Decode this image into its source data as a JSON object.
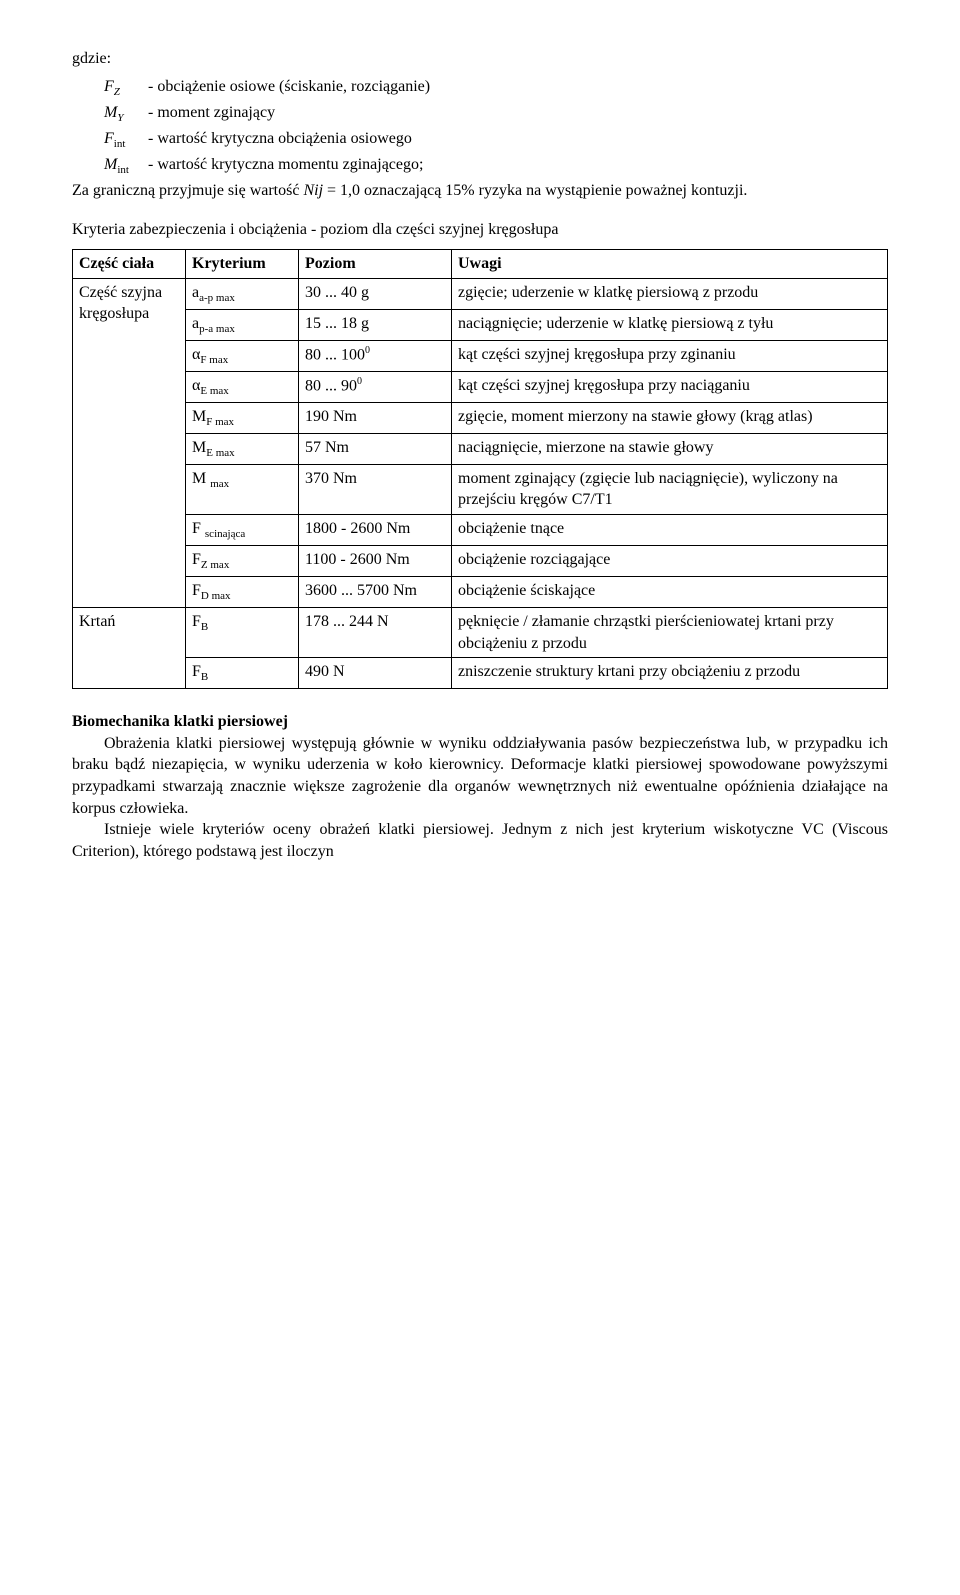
{
  "intro": {
    "gdzie": "gdzie:",
    "defs": [
      {
        "sym_html": "F<sub class='subit'>Z</sub>",
        "text": " - obciążenie osiowe (ściskanie, rozciąganie)"
      },
      {
        "sym_html": "M<sub class='subit'>Y</sub>",
        "text": " - moment zginający"
      },
      {
        "sym_html": "F<sub class='sub'>int</sub>",
        "text": " - wartość krytyczna obciążenia osiowego"
      },
      {
        "sym_html": "M<sub class='sub'>int</sub>",
        "text": " - wartość krytyczna momentu zginającego;"
      }
    ],
    "tail": "Za graniczną przyjmuje się wartość <span class='italic'>Nij</span> = 1,0 oznaczającą 15% ryzyka na wystąpienie poważnej kontuzji."
  },
  "table": {
    "caption": "Kryteria zabezpieczenia i obciążenia - poziom dla części szyjnej kręgosłupa",
    "headers": [
      "Część ciała",
      "Kryterium",
      "Poziom",
      "Uwagi"
    ],
    "groups": [
      {
        "part": "Część szyjna kręgosłupa",
        "rows": [
          {
            "k": "a<span class='sub'>a-p max</span>",
            "p": "30 ... 40 g",
            "u": "zgięcie; uderzenie w klatkę piersiową z przodu"
          },
          {
            "k": "a<span class='sub'>p-a max</span>",
            "p": "15 ... 18 g",
            "u": "naciągnięcie; uderzenie w klatkę piersiową z tyłu"
          },
          {
            "k": "α<span class='sub'>F max</span>",
            "p": "80 ... 100<span class='sup'>0</span>",
            "u": "kąt części szyjnej kręgosłupa przy zginaniu"
          },
          {
            "k": "α<span class='sub'>E max</span>",
            "p": "80 ... 90<span class='sup'>0</span>",
            "u": "kąt części szyjnej kręgosłupa przy naciąganiu"
          },
          {
            "k": "M<span class='sub'>F max</span>",
            "p": "190 Nm",
            "u": "zgięcie, moment mierzony na stawie głowy (krąg atlas)"
          },
          {
            "k": "M<span class='sub'>E max</span>",
            "p": "57 Nm",
            "u": "naciągnięcie, mierzone na stawie głowy"
          },
          {
            "k": "M <span class='sub'>max</span>",
            "p": "370 Nm",
            "u": "moment zginający (zgięcie lub naciągnięcie), wyliczony na przejściu kręgów  C7/T1"
          },
          {
            "k": "F <span class='sub'>scinająca</span>",
            "p": "1800 - 2600 Nm",
            "u": "obciążenie tnące"
          },
          {
            "k": "F<span class='sub'>Z max</span>",
            "p": "1100 - 2600 Nm",
            "u": "obciążenie rozciągające"
          },
          {
            "k": "F<span class='sub'>D max</span>",
            "p": "3600 ... 5700 Nm",
            "u": "obciążenie ściskające"
          }
        ]
      },
      {
        "part": "Krtań",
        "rows": [
          {
            "k": "F<span class='sub'>B</span>",
            "p": "178 ... 244 N",
            "u": "pęknięcie / złamanie chrząstki pierścieniowatej krtani przy obciążeniu z przodu"
          },
          {
            "k": "F<span class='sub'>B</span>",
            "p": "490 N",
            "u": "zniszczenie struktury krtani przy obciążeniu z przodu"
          }
        ]
      }
    ]
  },
  "section": {
    "title": "Biomechanika klatki piersiowej",
    "p1": "Obrażenia klatki piersiowej występują głównie w wyniku oddziaływania pasów bezpieczeństwa lub, w przypadku ich braku bądź niezapięcia, w wyniku uderzenia w koło kierownicy. Deformacje klatki piersiowej spowodowane powyższymi przypadkami stwarzają znacznie większe zagrożenie dla organów wewnętrznych niż ewentualne opóźnienia działające na korpus człowieka.",
    "p2": "Istnieje wiele kryteriów oceny obrażeń klatki piersiowej. Jednym z nich jest kryterium wiskotyczne VC (Viscous Criterion), którego podstawą jest iloczyn"
  }
}
